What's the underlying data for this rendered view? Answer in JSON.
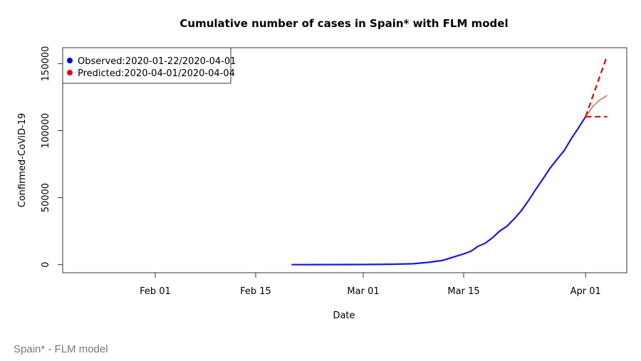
{
  "chart_data": {
    "type": "line",
    "title": "Cumulative number of cases in Spain* with FLM model",
    "xlabel": "Date",
    "ylabel": "Confirmed-CoViD-19",
    "xlim": [
      "2020-01-19",
      "2020-04-07"
    ],
    "ylim": [
      -5000,
      163000
    ],
    "x_ticks": [
      {
        "date": "2020-02-01",
        "label": "Feb 01"
      },
      {
        "date": "2020-02-15",
        "label": "Feb 15"
      },
      {
        "date": "2020-03-01",
        "label": "Mar 01"
      },
      {
        "date": "2020-03-15",
        "label": "Mar 15"
      },
      {
        "date": "2020-04-01",
        "label": "Apr 01"
      }
    ],
    "y_ticks": [
      0,
      50000,
      100000,
      150000
    ],
    "grid": false,
    "legend": {
      "placement": "top-left",
      "entries": [
        {
          "label": "Observed:2020-01-22/2020-04-01",
          "color": "#0000ee"
        },
        {
          "label": "Predicted:2020-04-01/2020-04-04",
          "color": "#ee0000"
        }
      ]
    },
    "observed": {
      "color": "#1a1ad6",
      "x": [
        "2020-02-20",
        "2020-02-25",
        "2020-03-01",
        "2020-03-05",
        "2020-03-08",
        "2020-03-10",
        "2020-03-12",
        "2020-03-14",
        "2020-03-15",
        "2020-03-16",
        "2020-03-17",
        "2020-03-18",
        "2020-03-19",
        "2020-03-20",
        "2020-03-21",
        "2020-03-22",
        "2020-03-23",
        "2020-03-24",
        "2020-03-25",
        "2020-03-26",
        "2020-03-27",
        "2020-03-28",
        "2020-03-29",
        "2020-03-30",
        "2020-03-31",
        "2020-04-01"
      ],
      "y": [
        0,
        50,
        100,
        300,
        700,
        1700,
        3100,
        6400,
        8000,
        10000,
        13700,
        16000,
        20000,
        25000,
        28500,
        33900,
        40000,
        47500,
        55800,
        63500,
        71700,
        78500,
        85000,
        94000,
        102000,
        110400
      ]
    },
    "predicted": [
      {
        "style": "dashed",
        "color": "#ee0000",
        "x": [
          "2020-04-01",
          "2020-04-04"
        ],
        "y": [
          110400,
          156000
        ]
      },
      {
        "style": "solid",
        "color": "#d04040",
        "x": [
          "2020-04-01",
          "2020-04-02",
          "2020-04-03",
          "2020-04-04"
        ],
        "y": [
          110400,
          118000,
          123000,
          126300
        ]
      },
      {
        "style": "dashed",
        "color": "#ee0000",
        "x": [
          "2020-04-01",
          "2020-04-04"
        ],
        "y": [
          110400,
          110400
        ]
      }
    ]
  },
  "footer": "Spain* - FLM model"
}
